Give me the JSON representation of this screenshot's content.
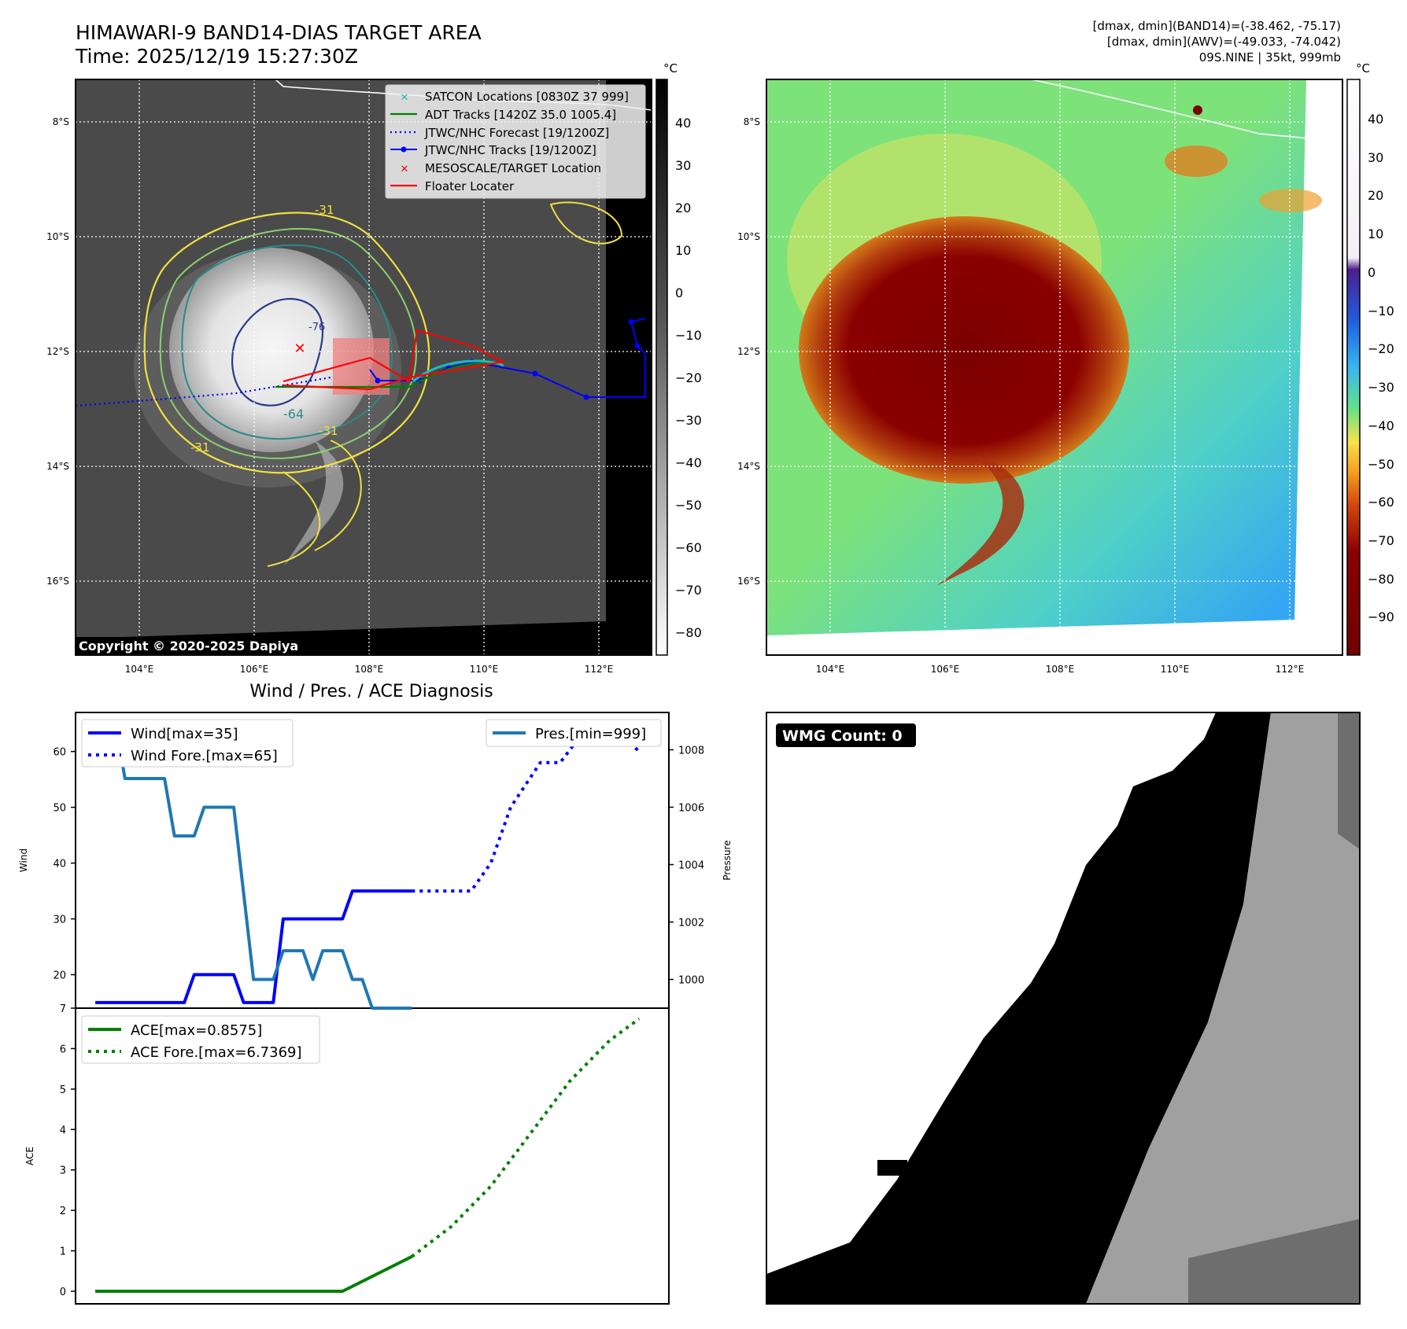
{
  "header": {
    "title_line1": "HIMAWARI-9 BAND14-DIAS TARGET AREA",
    "title_line2": "Time: 2025/12/19 15:27:30Z",
    "dmax_band14": "[dmax, dmin](BAND14)=(-38.462, -75.17)",
    "dmax_awv": "[dmax, dmin](AWV)=(-49.033, -74.042)",
    "storm_info": "09S.NINE | 35kt, 999mb"
  },
  "map": {
    "lon_ticks": [
      "104°E",
      "106°E",
      "108°E",
      "110°E",
      "112°E"
    ],
    "lat_ticks": [
      "8°S",
      "10°S",
      "12°S",
      "14°S",
      "16°S"
    ],
    "copyright": "Copyright © 2020-2025 Dapiya",
    "contour_labels": [
      "-31",
      "-64",
      "-76",
      "-31",
      "-31"
    ],
    "legend": [
      {
        "label": "SATCON Locations [0830Z 37 999]",
        "color": "#17bebe",
        "kind": "x"
      },
      {
        "label": "ADT Tracks [1420Z 35.0 1005.4]",
        "color": "#008000",
        "kind": "line"
      },
      {
        "label": "JTWC/NHC Forecast [19/1200Z]",
        "color": "#0000ff",
        "kind": "dot"
      },
      {
        "label": "JTWC/NHC Tracks [19/1200Z]",
        "color": "#0000ff",
        "kind": "marker"
      },
      {
        "label": "MESOSCALE/TARGET Location",
        "color": "#ff0000",
        "kind": "x"
      },
      {
        "label": "Floater Locater",
        "color": "#ff0000",
        "kind": "line"
      }
    ]
  },
  "colorbar_gray": {
    "unit": "°C",
    "ticks": [
      "40",
      "30",
      "20",
      "10",
      "0",
      "−10",
      "−20",
      "−30",
      "−40",
      "−50",
      "−60",
      "−70",
      "−80"
    ]
  },
  "colorbar_color": {
    "unit": "°C",
    "ticks": [
      "40",
      "30",
      "20",
      "10",
      "0",
      "−10",
      "−20",
      "−30",
      "−40",
      "−50",
      "−60",
      "−70",
      "−80",
      "−90"
    ]
  },
  "wmg": {
    "label": "WMG Count: 0"
  },
  "chart_data": [
    {
      "type": "line",
      "title": "Wind / Pres. / ACE Diagnosis",
      "ylabel": "Wind",
      "y2label": "Pressure",
      "ylim": [
        14,
        67
      ],
      "y2lim": [
        999.0,
        1009.3
      ],
      "yticks": [
        "20",
        "30",
        "40",
        "50",
        "60"
      ],
      "y2ticks": [
        "1000",
        "1002",
        "1004",
        "1006",
        "1008"
      ],
      "series": [
        {
          "name": "Wind[max=35]",
          "axis": "left",
          "style": "solid",
          "color": "#0000ff",
          "x": [
            0,
            1,
            2,
            3,
            4,
            5,
            6,
            7,
            8,
            9,
            10,
            11,
            12,
            13,
            14,
            15,
            16,
            17,
            18,
            19,
            20,
            21,
            22,
            23,
            24,
            25,
            26,
            27,
            28,
            29,
            30,
            31,
            32
          ],
          "y": [
            15,
            15,
            15,
            15,
            15,
            15,
            15,
            15,
            15,
            15,
            20,
            20,
            20,
            20,
            20,
            15,
            15,
            15,
            15,
            30,
            30,
            30,
            30,
            30,
            30,
            30,
            35,
            35,
            35,
            35,
            35,
            35,
            35
          ]
        },
        {
          "name": "Wind Fore.[max=65]",
          "axis": "left",
          "style": "dotted",
          "color": "#0000ff",
          "x": [
            32,
            35,
            38,
            40,
            42,
            45,
            47,
            50,
            52,
            55
          ],
          "y": [
            35,
            35,
            35,
            40,
            50,
            58,
            58,
            65,
            65,
            60
          ]
        },
        {
          "name": "Pres.[min=999]",
          "axis": "right",
          "style": "solid",
          "color": "#1f77b4",
          "x": [
            0,
            1,
            2,
            3,
            4,
            5,
            6,
            7,
            8,
            9,
            10,
            11,
            12,
            13,
            14,
            15,
            16,
            17,
            18,
            19,
            20,
            21,
            22,
            23,
            24,
            25,
            26,
            27,
            28,
            29,
            30,
            31,
            32
          ],
          "y": [
            1009,
            1009,
            1009,
            1007,
            1007,
            1007,
            1007,
            1007,
            1005,
            1005,
            1005,
            1006,
            1006,
            1006,
            1006,
            1003,
            1000,
            1000,
            1000,
            1001,
            1001,
            1001,
            1000,
            1001,
            1001,
            1001,
            1000,
            1000,
            999,
            999,
            999,
            999,
            999
          ]
        }
      ]
    },
    {
      "type": "line",
      "ylabel": "ACE",
      "ylim": [
        0,
        7
      ],
      "yticks": [
        "0",
        "1",
        "2",
        "3",
        "4",
        "5",
        "6",
        "7"
      ],
      "series": [
        {
          "name": "ACE[max=0.8575]",
          "style": "solid",
          "color": "#008000",
          "x": [
            0,
            25,
            32
          ],
          "y": [
            0,
            0,
            0.8575
          ]
        },
        {
          "name": "ACE Fore.[max=6.7369]",
          "style": "dotted",
          "color": "#008000",
          "x": [
            32,
            36,
            40,
            44,
            48,
            52,
            55
          ],
          "y": [
            0.8575,
            1.6,
            2.6,
            3.9,
            5.2,
            6.2,
            6.7369
          ]
        }
      ]
    }
  ]
}
